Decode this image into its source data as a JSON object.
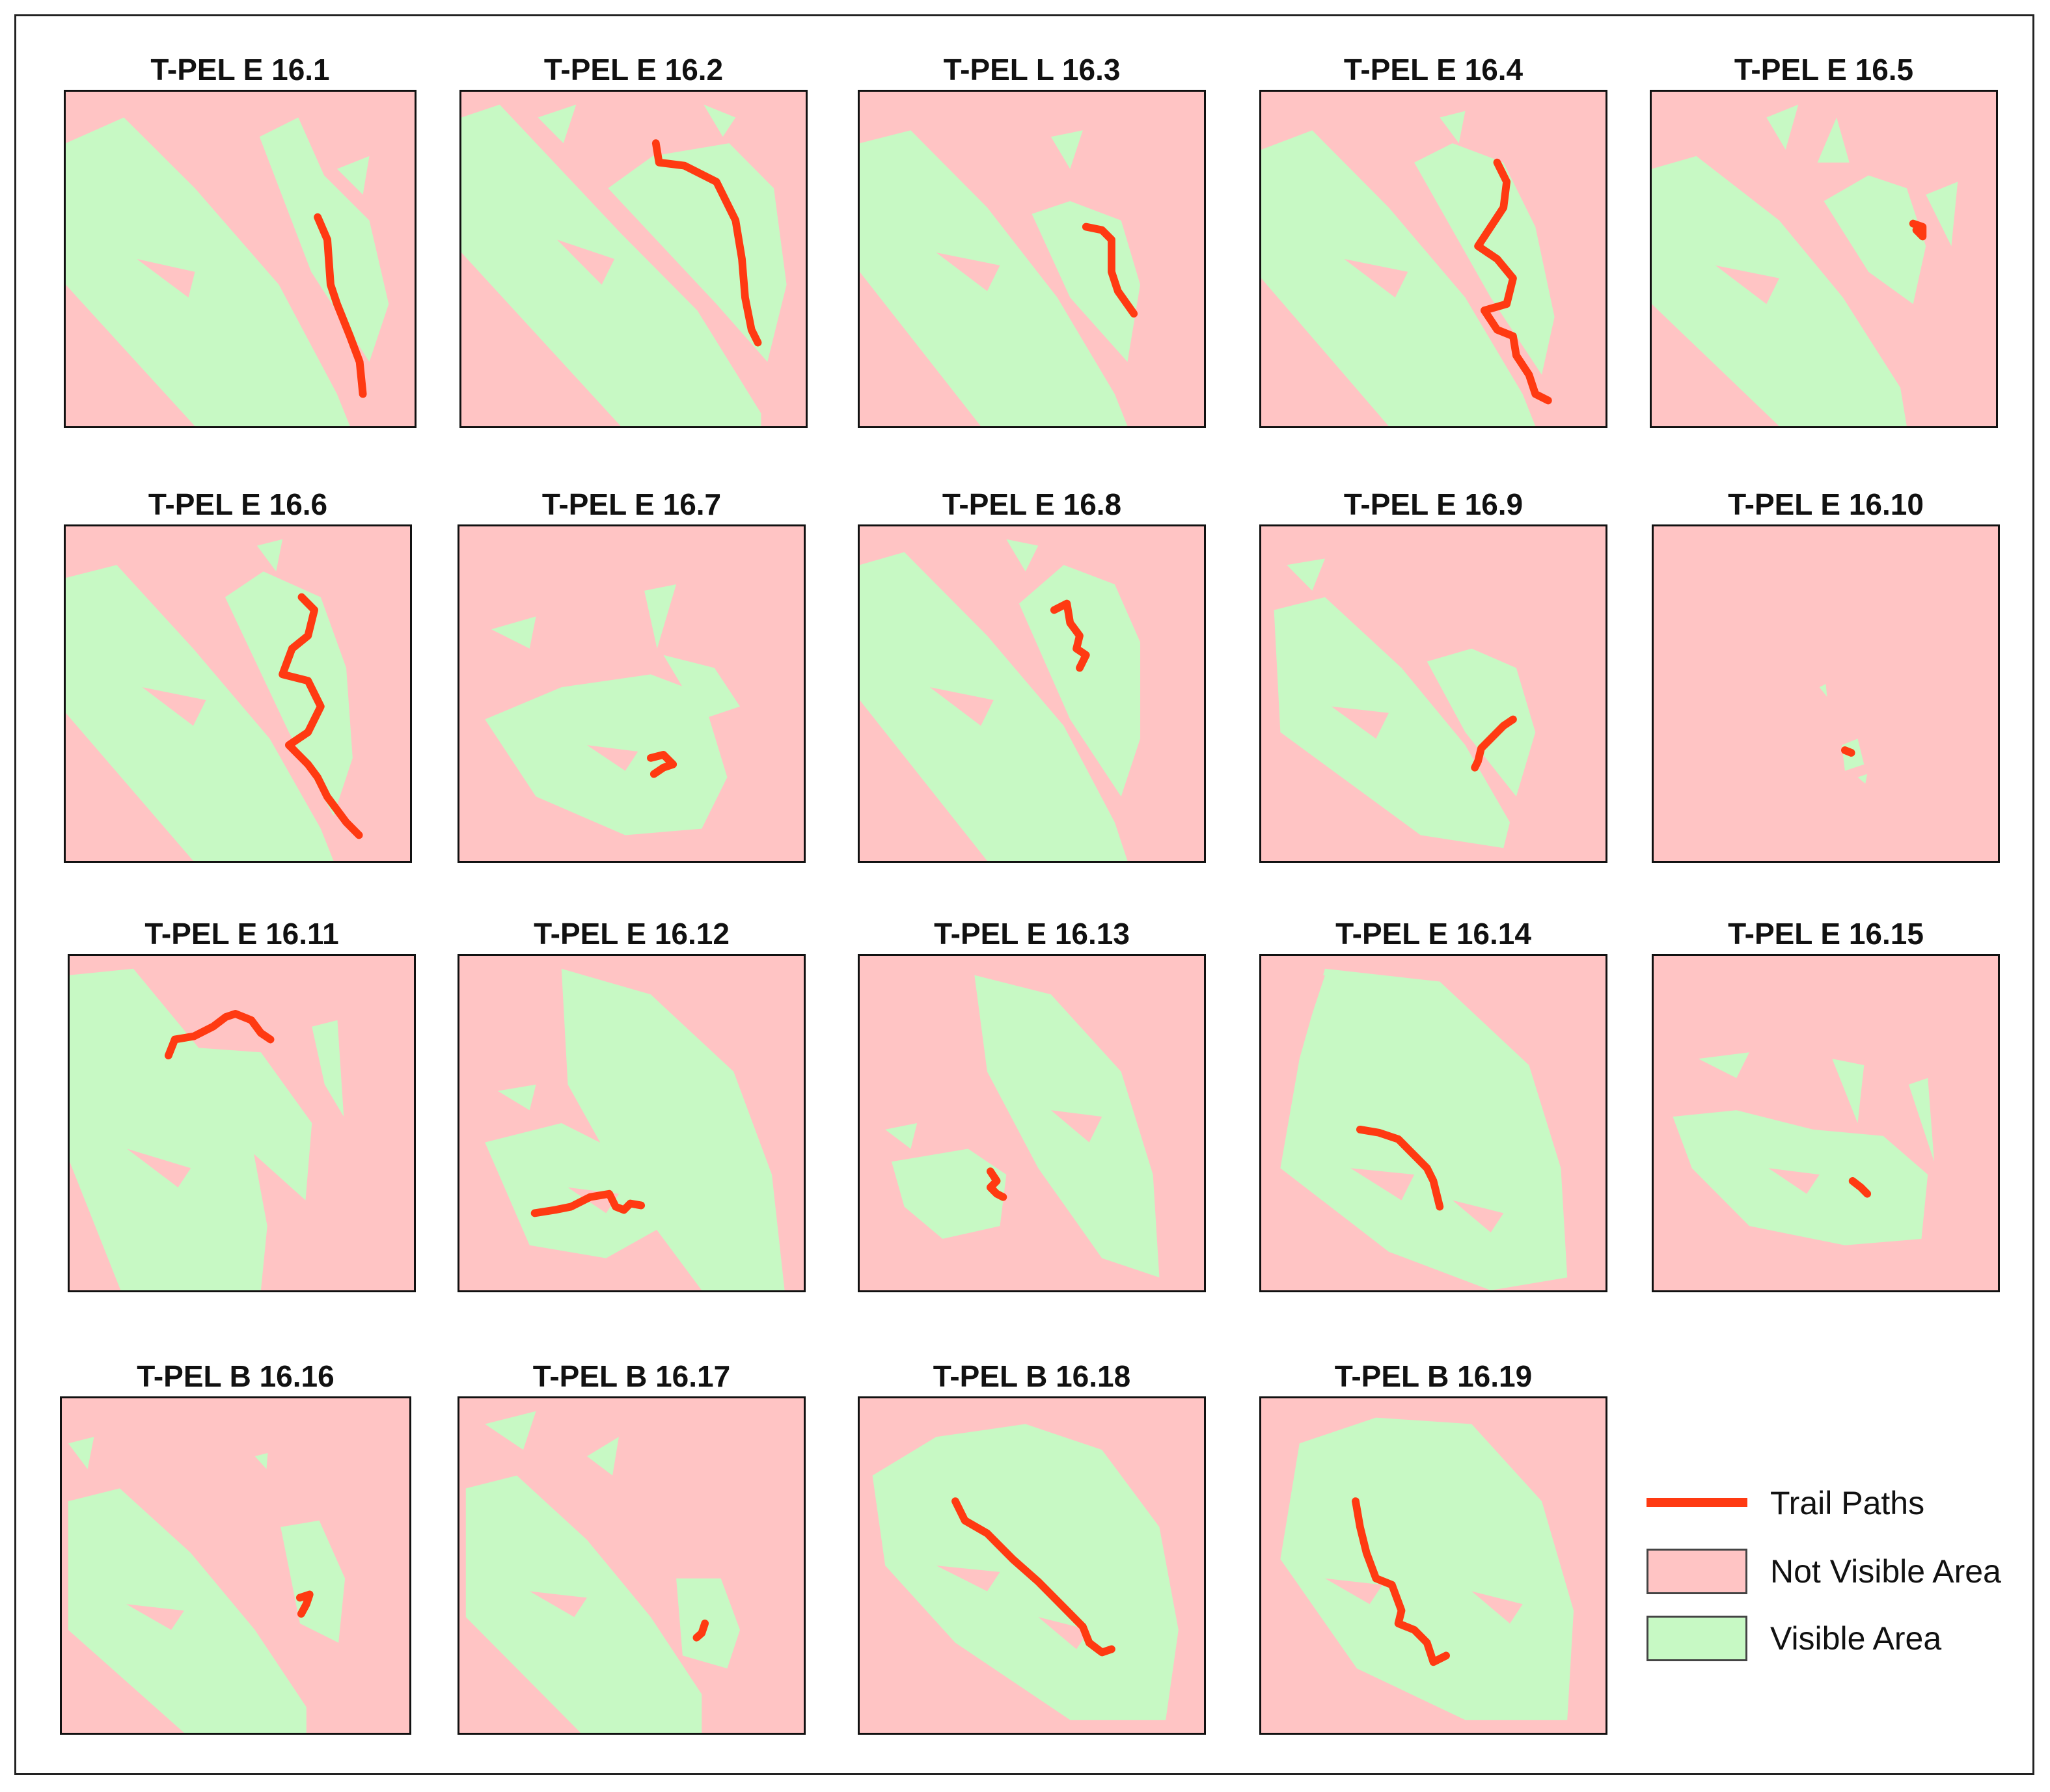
{
  "colors": {
    "not_visible": "#ffc4c4",
    "visible": "#c7f9c4",
    "trail": "#ff3a12"
  },
  "panels": [
    {
      "title": "T-PEL E 16.1"
    },
    {
      "title": "T-PEL E 16.2"
    },
    {
      "title": "T-PEL L 16.3"
    },
    {
      "title": "T-PEL E 16.4"
    },
    {
      "title": "T-PEL E 16.5"
    },
    {
      "title": "T-PEL E 16.6"
    },
    {
      "title": "T-PEL E 16.7"
    },
    {
      "title": "T-PEL E 16.8"
    },
    {
      "title": "T-PEL E 16.9"
    },
    {
      "title": "T-PEL E 16.10"
    },
    {
      "title": "T-PEL E 16.11"
    },
    {
      "title": "T-PEL E 16.12"
    },
    {
      "title": "T-PEL E 16.13"
    },
    {
      "title": "T-PEL E 16.14"
    },
    {
      "title": "T-PEL E 16.15"
    },
    {
      "title": "T-PEL B 16.16"
    },
    {
      "title": "T-PEL B 16.17"
    },
    {
      "title": "T-PEL B 16.18"
    },
    {
      "title": "T-PEL B 16.19"
    }
  ],
  "legend": {
    "trail": "Trail Paths",
    "not_visible": "Not Visible Area",
    "visible": "Visible Area"
  }
}
